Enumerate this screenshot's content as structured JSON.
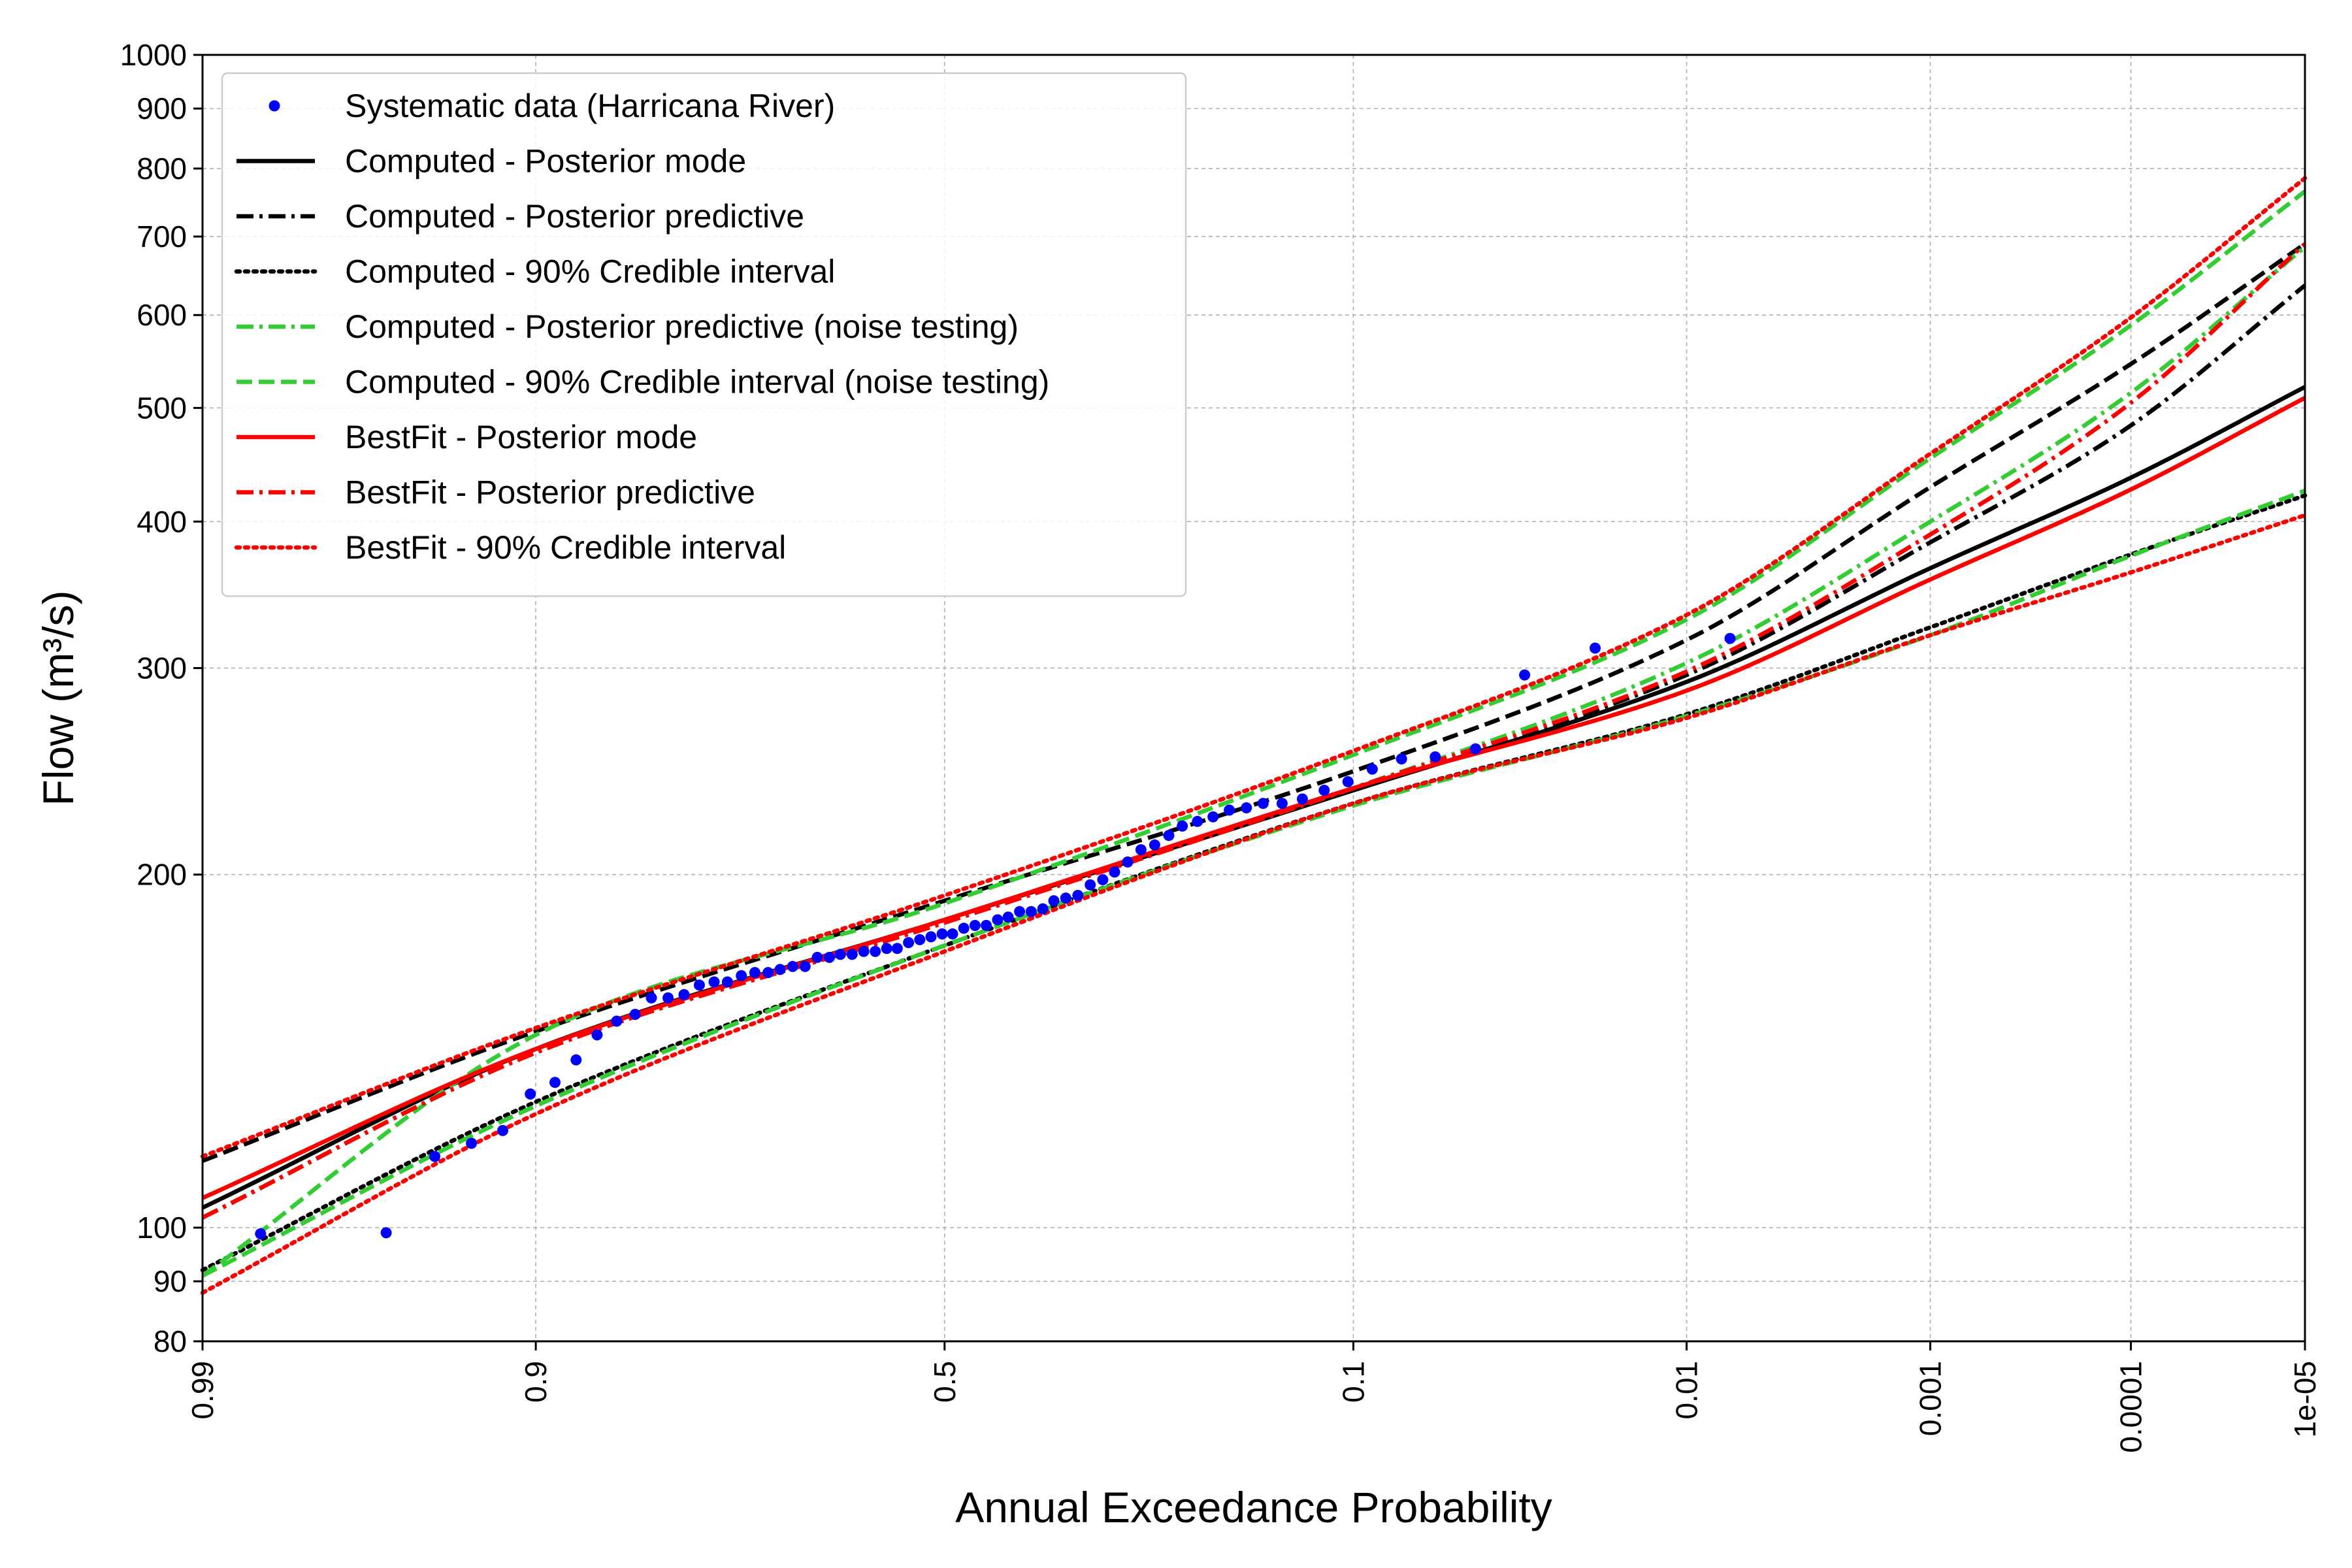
{
  "chart_data": {
    "type": "line",
    "xlabel": "Annual Exceedance Probability",
    "ylabel": "Flow (m³/s)",
    "x_scale": "normal-probability (exceedance, descending)",
    "xlim": [
      0.99,
      1e-05
    ],
    "ylim": [
      80,
      1000
    ],
    "y_scale": "log",
    "grid": true,
    "legend_position": "upper-left",
    "x_ticks": [
      {
        "p": 0.99,
        "label": "0.99"
      },
      {
        "p": 0.9,
        "label": "0.9"
      },
      {
        "p": 0.5,
        "label": "0.5"
      },
      {
        "p": 0.1,
        "label": "0.1"
      },
      {
        "p": 0.01,
        "label": "0.01"
      },
      {
        "p": 0.001,
        "label": "0.001"
      },
      {
        "p": 0.0001,
        "label": "0.0001"
      },
      {
        "p": 1e-05,
        "label": "1e-05"
      }
    ],
    "y_ticks": [
      {
        "v": 80,
        "label": "80"
      },
      {
        "v": 90,
        "label": "90"
      },
      {
        "v": 100,
        "label": "100"
      },
      {
        "v": 200,
        "label": "200"
      },
      {
        "v": 300,
        "label": "300"
      },
      {
        "v": 400,
        "label": "400"
      },
      {
        "v": 500,
        "label": "500"
      },
      {
        "v": 600,
        "label": "600"
      },
      {
        "v": 700,
        "label": "700"
      },
      {
        "v": 800,
        "label": "800"
      },
      {
        "v": 900,
        "label": "900"
      },
      {
        "v": 1000,
        "label": "1000"
      }
    ],
    "scatter": {
      "name": "Systematic data (Harricana River)",
      "color": "#0000ff",
      "points": [
        [
          0.984,
          98.8
        ],
        [
          0.96,
          99.0
        ],
        [
          0.945,
          115
        ],
        [
          0.931,
          118
        ],
        [
          0.917,
          121
        ],
        [
          0.903,
          130
        ],
        [
          0.889,
          133
        ],
        [
          0.876,
          139
        ],
        [
          0.862,
          146
        ],
        [
          0.848,
          150
        ],
        [
          0.834,
          152
        ],
        [
          0.821,
          157
        ],
        [
          0.807,
          157
        ],
        [
          0.793,
          158
        ],
        [
          0.779,
          161
        ],
        [
          0.765,
          162
        ],
        [
          0.752,
          162
        ],
        [
          0.738,
          164
        ],
        [
          0.724,
          165
        ],
        [
          0.71,
          165
        ],
        [
          0.697,
          166
        ],
        [
          0.683,
          167
        ],
        [
          0.669,
          167
        ],
        [
          0.655,
          170
        ],
        [
          0.641,
          170
        ],
        [
          0.628,
          171
        ],
        [
          0.614,
          171
        ],
        [
          0.6,
          172
        ],
        [
          0.586,
          172
        ],
        [
          0.572,
          173
        ],
        [
          0.559,
          173
        ],
        [
          0.545,
          175
        ],
        [
          0.531,
          176
        ],
        [
          0.517,
          177
        ],
        [
          0.503,
          178
        ],
        [
          0.49,
          178
        ],
        [
          0.476,
          180
        ],
        [
          0.462,
          181
        ],
        [
          0.448,
          181
        ],
        [
          0.434,
          183
        ],
        [
          0.421,
          184
        ],
        [
          0.407,
          186
        ],
        [
          0.393,
          186
        ],
        [
          0.379,
          187
        ],
        [
          0.366,
          190
        ],
        [
          0.352,
          191
        ],
        [
          0.338,
          192
        ],
        [
          0.324,
          196
        ],
        [
          0.31,
          198
        ],
        [
          0.297,
          201
        ],
        [
          0.283,
          205
        ],
        [
          0.269,
          210
        ],
        [
          0.255,
          212
        ],
        [
          0.241,
          216
        ],
        [
          0.228,
          220
        ],
        [
          0.214,
          222
        ],
        [
          0.2,
          224
        ],
        [
          0.186,
          227
        ],
        [
          0.172,
          228
        ],
        [
          0.159,
          230
        ],
        [
          0.145,
          230
        ],
        [
          0.131,
          232
        ],
        [
          0.117,
          236
        ],
        [
          0.103,
          240
        ],
        [
          0.09,
          246
        ],
        [
          0.076,
          251
        ],
        [
          0.062,
          252
        ],
        [
          0.048,
          256
        ],
        [
          0.0345,
          296
        ],
        [
          0.0207,
          312
        ],
        [
          0.0069,
          318
        ]
      ]
    },
    "x_grid": [
      0.99,
      0.9,
      0.5,
      0.1,
      0.01,
      0.001,
      0.0001,
      1e-05
    ],
    "series": [
      {
        "name": "Computed - Posterior mode",
        "color": "#000000",
        "dash": "solid",
        "values": [
          104,
          142,
          183,
          236,
          292,
          365,
          436,
          521
        ]
      },
      {
        "name": "Computed - Posterior predictive",
        "color": "#000000",
        "dash": "dashdot",
        "values": [
          102,
          141,
          182,
          237,
          296,
          384,
          483,
          636
        ]
      },
      {
        "name": "Computed - 90% Credible interval",
        "color": "#000000",
        "dash": "dotted",
        "values": [
          92,
          128,
          174,
          230,
          274,
          325,
          375,
          421
        ]
      },
      {
        "name": "Computed - 90% Credible interval (upper)",
        "color": "#000000",
        "dash": "dashed",
        "values": [
          114,
          147,
          190,
          245,
          317,
          428,
          545,
          690
        ]
      },
      {
        "name": "Computed - Posterior predictive (noise testing)",
        "color": "#33cc33",
        "dash": "dashdot",
        "values": [
          102,
          141,
          183,
          237,
          303,
          400,
          515,
          686
        ]
      },
      {
        "name": "Computed - 90% Credible interval (noise testing)",
        "color": "#33cc33",
        "dash": "dashed",
        "values": [
          91,
          146,
          189,
          253,
          330,
          453,
          588,
          765
        ]
      },
      {
        "name": "Computed - 90% Credible interval (noise testing, lower)",
        "color": "#33cc33",
        "dash": "dashed",
        "values": [
          91,
          127,
          174,
          229,
          273,
          320,
          374,
          425
        ]
      },
      {
        "name": "BestFit - Posterior mode",
        "color": "#ff0000",
        "dash": "solid",
        "values": [
          106,
          142,
          183,
          237,
          287,
          357,
          426,
          510
        ]
      },
      {
        "name": "BestFit - Posterior predictive",
        "color": "#ff0000",
        "dash": "dashdot",
        "values": [
          102,
          141,
          182,
          237,
          298,
          390,
          505,
          690
        ]
      },
      {
        "name": "BestFit - 90% Credible interval",
        "color": "#ff0000",
        "dash": "dotted",
        "values": [
          88,
          125,
          172,
          230,
          272,
          320,
          362,
          405
        ]
      },
      {
        "name": "BestFit - 90% Credible interval (upper)",
        "color": "#ff0000",
        "dash": "dotted",
        "values": [
          115,
          148,
          192,
          255,
          333,
          457,
          597,
          785
        ]
      }
    ],
    "legend": [
      {
        "label": "Systematic data (Harricana River)",
        "color": "#0000ff",
        "style": "marker"
      },
      {
        "label": "Computed - Posterior mode",
        "color": "#000000",
        "style": "solid"
      },
      {
        "label": "Computed - Posterior predictive",
        "color": "#000000",
        "style": "dashdot"
      },
      {
        "label": "Computed - 90% Credible interval",
        "color": "#000000",
        "style": "dotted"
      },
      {
        "label": "Computed - Posterior predictive (noise testing)",
        "color": "#33cc33",
        "style": "dashdot"
      },
      {
        "label": "Computed - 90% Credible interval (noise testing)",
        "color": "#33cc33",
        "style": "dashed"
      },
      {
        "label": "BestFit - Posterior mode",
        "color": "#ff0000",
        "style": "solid"
      },
      {
        "label": "BestFit - Posterior predictive",
        "color": "#ff0000",
        "style": "dashdot"
      },
      {
        "label": "BestFit - 90% Credible interval",
        "color": "#ff0000",
        "style": "dotted"
      }
    ]
  }
}
